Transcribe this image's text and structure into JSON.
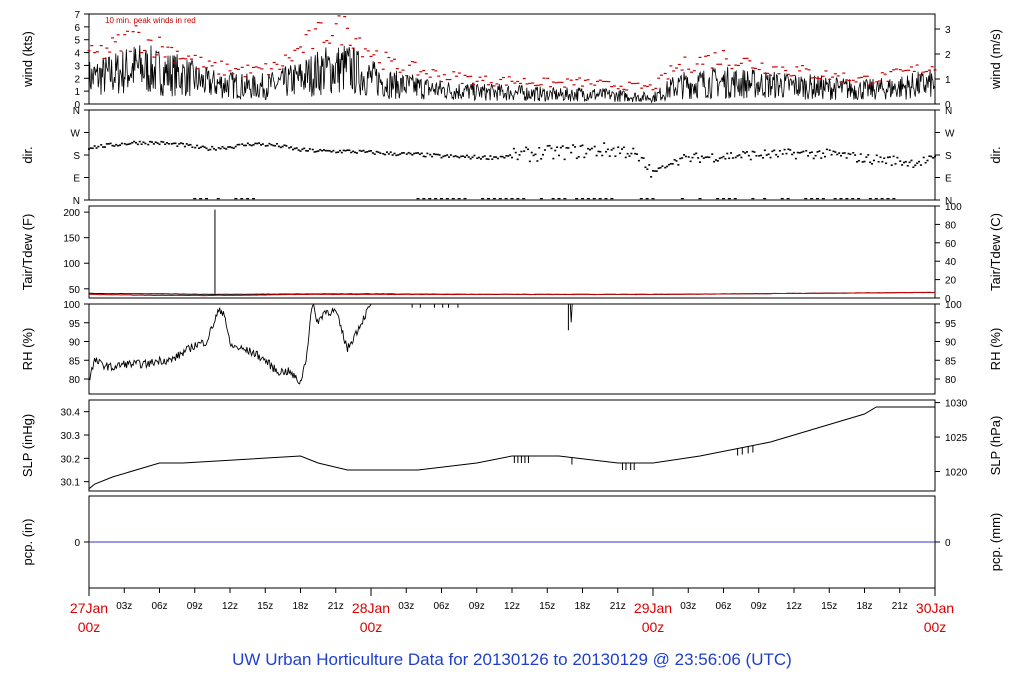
{
  "footer_title": "UW Urban Horticulture Data for 20130126  to  20130129 @ 23:56:06  (UTC)",
  "colors": {
    "axis": "#000000",
    "peak": "#cc0000",
    "date": "#dd0000",
    "precip": "#3333cc",
    "footer": "#1f3fd0"
  },
  "x_axis": {
    "range_hours": [
      0,
      72
    ],
    "hour_ticks": [
      {
        "h": 3,
        "label": "03z"
      },
      {
        "h": 6,
        "label": "06z"
      },
      {
        "h": 9,
        "label": "09z"
      },
      {
        "h": 12,
        "label": "12z"
      },
      {
        "h": 15,
        "label": "15z"
      },
      {
        "h": 18,
        "label": "18z"
      },
      {
        "h": 21,
        "label": "21z"
      },
      {
        "h": 27,
        "label": "03z"
      },
      {
        "h": 30,
        "label": "06z"
      },
      {
        "h": 33,
        "label": "09z"
      },
      {
        "h": 36,
        "label": "12z"
      },
      {
        "h": 39,
        "label": "15z"
      },
      {
        "h": 42,
        "label": "18z"
      },
      {
        "h": 45,
        "label": "21z"
      },
      {
        "h": 51,
        "label": "03z"
      },
      {
        "h": 54,
        "label": "06z"
      },
      {
        "h": 57,
        "label": "09z"
      },
      {
        "h": 60,
        "label": "12z"
      },
      {
        "h": 63,
        "label": "15z"
      },
      {
        "h": 66,
        "label": "18z"
      },
      {
        "h": 69,
        "label": "21z"
      }
    ],
    "date_ticks": [
      {
        "h": 0,
        "date": "27Jan",
        "time": "00z"
      },
      {
        "h": 24,
        "date": "28Jan",
        "time": "00z"
      },
      {
        "h": 48,
        "date": "29Jan",
        "time": "00z"
      },
      {
        "h": 72,
        "date": "30Jan",
        "time": "00z"
      }
    ]
  },
  "chart_data": [
    {
      "type": "line",
      "panel": "wind",
      "ylabel_left": "wind (kts)",
      "ylabel_right": "wind (m/s)",
      "ylim": [
        0,
        7
      ],
      "yticks_left": [
        0,
        1,
        2,
        3,
        4,
        5,
        6,
        7
      ],
      "yticks_right": [
        {
          "v": 0,
          "label": "0"
        },
        {
          "v": 1.944,
          "label": "1"
        },
        {
          "v": 3.888,
          "label": "2"
        },
        {
          "v": 5.832,
          "label": "3"
        }
      ],
      "annotation": "10 min. peak winds in red",
      "series": [
        {
          "role": "wind",
          "x": [
            0,
            2,
            4,
            6,
            8,
            10,
            12,
            14,
            16,
            18,
            20,
            22,
            24,
            26,
            28,
            30,
            32,
            34,
            36,
            38,
            40,
            42,
            44,
            46,
            48,
            50,
            52,
            54,
            56,
            58,
            60,
            62,
            64,
            66,
            68,
            70,
            72
          ],
          "values": [
            2.0,
            2.3,
            2.8,
            2.5,
            2.2,
            1.6,
            1.5,
            1.3,
            1.5,
            2.0,
            2.6,
            2.8,
            2.0,
            1.5,
            1.3,
            1.1,
            1.0,
            0.9,
            0.9,
            0.8,
            0.7,
            0.8,
            0.7,
            0.6,
            0.5,
            1.4,
            1.6,
            1.7,
            1.6,
            1.5,
            1.4,
            1.3,
            1.2,
            1.1,
            1.2,
            1.4,
            1.6
          ]
        },
        {
          "role": "peak",
          "x": [
            0,
            2,
            4,
            6,
            8,
            10,
            12,
            14,
            16,
            18,
            20,
            22,
            24,
            26,
            28,
            30,
            32,
            34,
            36,
            38,
            40,
            42,
            44,
            46,
            48,
            50,
            52,
            54,
            56,
            58,
            60,
            62,
            64,
            66,
            68,
            70,
            72
          ],
          "values": [
            3.6,
            4.3,
            5.2,
            4.4,
            3.8,
            2.8,
            2.7,
            2.5,
            2.8,
            4.2,
            5.5,
            5.8,
            4.0,
            2.9,
            2.6,
            2.2,
            2.0,
            1.8,
            1.8,
            1.7,
            1.6,
            1.7,
            1.5,
            1.4,
            1.3,
            2.8,
            3.3,
            3.6,
            3.2,
            2.8,
            2.6,
            2.3,
            2.1,
            1.9,
            2.1,
            2.5,
            2.9
          ]
        }
      ]
    },
    {
      "type": "scatter",
      "panel": "direction",
      "ylabel": "dir.",
      "ylim": [
        0,
        360
      ],
      "yticks": [
        {
          "v": 0,
          "label": "N"
        },
        {
          "v": 90,
          "label": "E"
        },
        {
          "v": 180,
          "label": "S"
        },
        {
          "v": 270,
          "label": "W"
        },
        {
          "v": 360,
          "label": "N"
        }
      ],
      "x": [
        0,
        2,
        4,
        6,
        8,
        10,
        12,
        14,
        16,
        18,
        20,
        22,
        24,
        26,
        28,
        30,
        32,
        34,
        36,
        38,
        40,
        42,
        44,
        46,
        48,
        50,
        52,
        54,
        56,
        58,
        60,
        62,
        64,
        66,
        68,
        70,
        72
      ],
      "values": [
        210,
        220,
        230,
        228,
        220,
        205,
        212,
        225,
        218,
        200,
        195,
        195,
        190,
        185,
        182,
        175,
        172,
        170,
        175,
        185,
        190,
        195,
        200,
        195,
        110,
        160,
        170,
        175,
        180,
        182,
        185,
        185,
        180,
        165,
        160,
        150,
        160
      ]
    },
    {
      "type": "line",
      "panel": "temperature",
      "ylabel_left": "Tair/Tdew (F)",
      "ylabel_right": "Tair/Tdew (C)",
      "ylim": [
        32,
        212
      ],
      "yticks_left": [
        50,
        100,
        150,
        200
      ],
      "yticks_right": [
        {
          "v": 32,
          "label": "0"
        },
        {
          "v": 68,
          "label": "20"
        },
        {
          "v": 104,
          "label": "40"
        },
        {
          "v": 140,
          "label": "60"
        },
        {
          "v": 176,
          "label": "80"
        },
        {
          "v": 212,
          "label": "100"
        }
      ],
      "series": [
        {
          "name": "Tair",
          "x": [
            0,
            6,
            10.7,
            10.72,
            10.75,
            18,
            24,
            36,
            48,
            60,
            72
          ],
          "values": [
            41,
            40,
            39,
            205,
            39,
            40,
            40,
            39,
            39,
            41,
            43
          ]
        },
        {
          "name": "Tdew",
          "x": [
            0,
            6,
            12,
            18,
            24,
            36,
            48,
            60,
            72
          ],
          "values": [
            39,
            37,
            37,
            39,
            39,
            39,
            39,
            41,
            43
          ]
        }
      ]
    },
    {
      "type": "line",
      "panel": "rh",
      "ylabel_left": "RH (%)",
      "ylabel_right": "RH (%)",
      "ylim": [
        76,
        100
      ],
      "yticks": [
        80,
        85,
        90,
        95,
        100
      ],
      "x": [
        0,
        0.5,
        1,
        2,
        3,
        4,
        5,
        6,
        7,
        8,
        9,
        10,
        11,
        11.5,
        12,
        13,
        14,
        15,
        16,
        17,
        18,
        18.5,
        19,
        19.5,
        20,
        21,
        22,
        23,
        24,
        25,
        30,
        36,
        40,
        41,
        41.05,
        41.1,
        42,
        48,
        60,
        72
      ],
      "values": [
        80,
        85,
        84,
        83,
        84,
        84,
        84,
        85,
        85,
        87,
        89,
        90,
        98,
        98,
        89,
        88,
        87,
        85,
        82,
        82,
        79,
        86,
        100,
        95,
        98,
        98,
        88,
        94,
        100,
        100,
        100,
        100,
        100,
        100,
        93,
        100,
        100,
        100,
        100,
        100
      ]
    },
    {
      "type": "line",
      "panel": "slp",
      "ylabel_left": "SLP (inHg)",
      "ylabel_right": "SLP (hPa)",
      "ylim": [
        30.06,
        30.45
      ],
      "yticks_left": [
        30.1,
        30.2,
        30.3,
        30.4
      ],
      "yticks_right": [
        {
          "v": 30.1436,
          "label": "1020"
        },
        {
          "v": 30.2912,
          "label": "1025"
        },
        {
          "v": 30.4389,
          "label": "1030"
        }
      ],
      "x": [
        0,
        0.5,
        2,
        4,
        6,
        8,
        18,
        18,
        19.5,
        19.5,
        22,
        22,
        28,
        28,
        33,
        33,
        36,
        36,
        40,
        40,
        45,
        45,
        48,
        48,
        52,
        52,
        55,
        55,
        58,
        58,
        60,
        60,
        62,
        62,
        64,
        64,
        66,
        66,
        67,
        67,
        72
      ],
      "values": [
        30.07,
        30.09,
        30.12,
        30.15,
        30.18,
        30.18,
        30.21,
        30.21,
        30.18,
        30.18,
        30.15,
        30.15,
        30.15,
        30.15,
        30.18,
        30.18,
        30.21,
        30.21,
        30.21,
        30.21,
        30.18,
        30.18,
        30.18,
        30.18,
        30.21,
        30.21,
        30.24,
        30.24,
        30.27,
        30.27,
        30.3,
        30.3,
        30.33,
        30.33,
        30.36,
        30.36,
        30.39,
        30.39,
        30.42,
        30.42,
        30.42
      ]
    },
    {
      "type": "line",
      "panel": "precip",
      "ylabel_left": "pcp. (in)",
      "ylabel_right": "pcp. (mm)",
      "ylim": [
        -1,
        1
      ],
      "yticks_left": [
        0
      ],
      "yticks_right": [
        {
          "v": 0,
          "label": "0"
        }
      ],
      "x": [
        0,
        72
      ],
      "values": [
        0,
        0
      ]
    }
  ]
}
